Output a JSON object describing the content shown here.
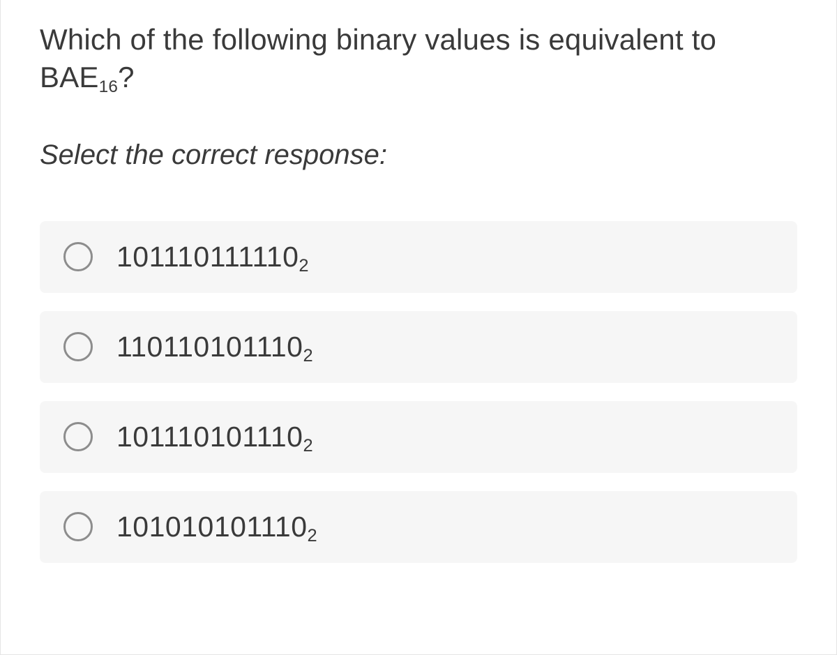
{
  "question": {
    "prefix": "Which of the following binary values is equivalent to BAE",
    "question_sub": "16",
    "suffix": "?"
  },
  "instruction": "Select the correct response:",
  "options": [
    {
      "value": "101110111110",
      "sub": "2"
    },
    {
      "value": "110110101110",
      "sub": "2"
    },
    {
      "value": "101110101110",
      "sub": "2"
    },
    {
      "value": "101010101110",
      "sub": "2"
    }
  ],
  "colors": {
    "option_bg": "#f6f6f6",
    "radio_border": "#8d8d8d",
    "text": "#3a3a3a",
    "card_border": "#e5e5e5"
  }
}
